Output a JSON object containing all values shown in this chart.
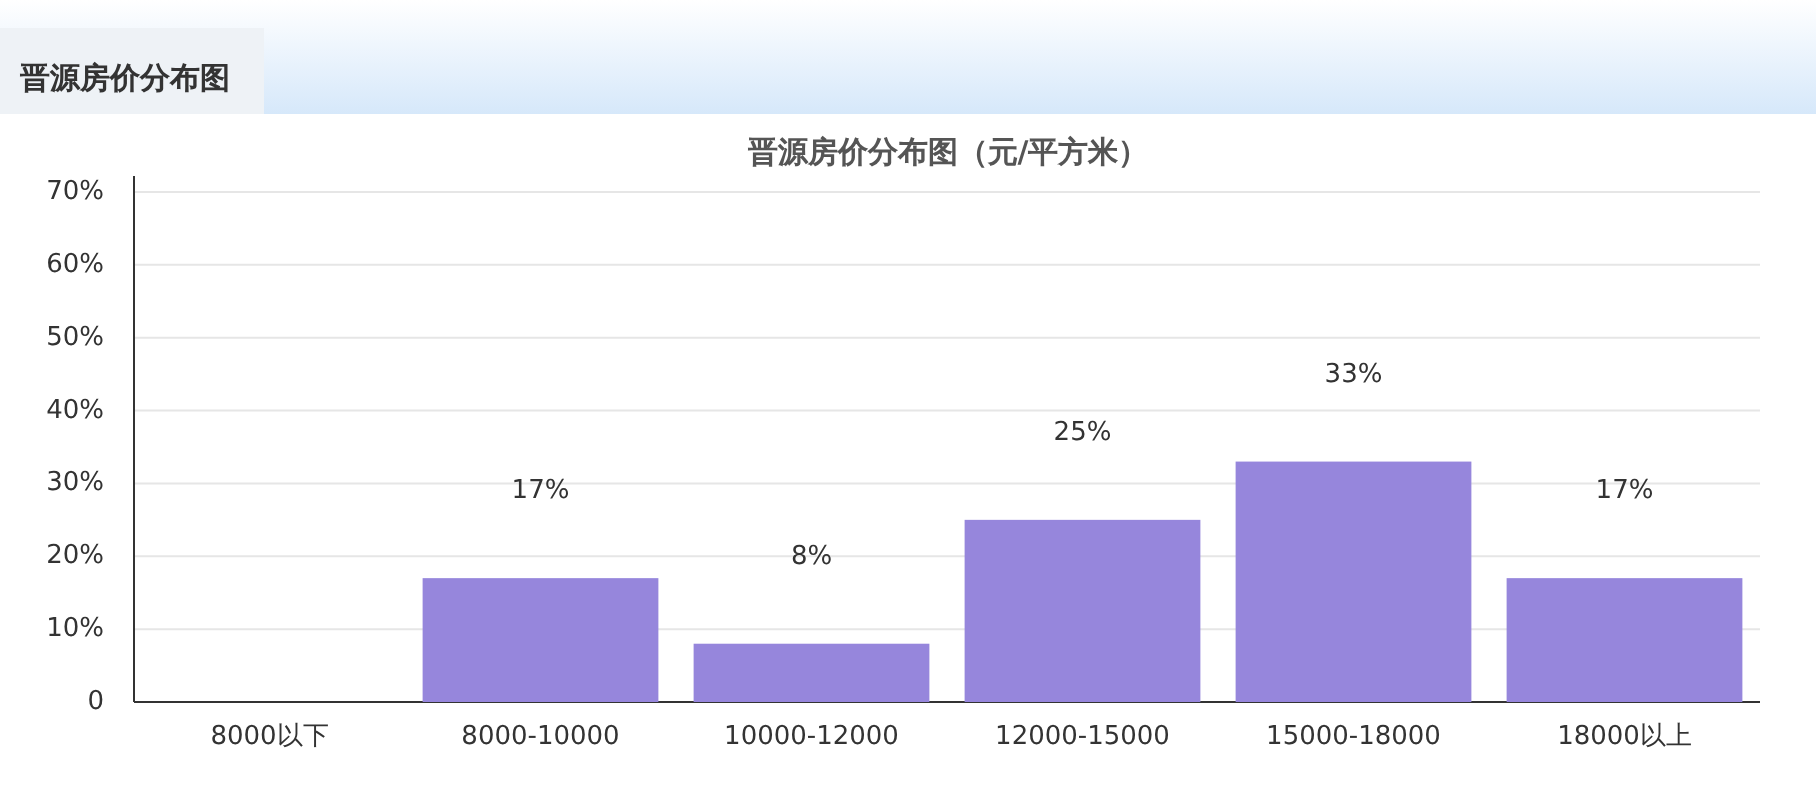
{
  "chart_data": {
    "type": "bar",
    "title": "晋源房价分布图",
    "subtitle": "晋源房价分布图（元/平方米）",
    "categories": [
      "8000以下",
      "8000-10000",
      "10000-12000",
      "12000-15000",
      "15000-18000",
      "18000以上"
    ],
    "values": [
      0,
      17,
      8,
      25,
      33,
      17
    ],
    "value_labels": [
      null,
      "17%",
      "8%",
      "25%",
      "33%",
      "17%"
    ],
    "color": "#9686dc",
    "ylim": [
      0,
      70
    ],
    "yticks": [
      0,
      {
        "value": 10,
        "label": "10%"
      },
      {
        "value": 20,
        "label": "20%"
      },
      {
        "value": 30,
        "label": "30%"
      },
      {
        "value": 40,
        "label": "40%"
      },
      {
        "value": 50,
        "label": "50%"
      },
      {
        "value": 60,
        "label": "60%"
      },
      {
        "value": 70,
        "label": "70%"
      }
    ],
    "grid": "y"
  }
}
